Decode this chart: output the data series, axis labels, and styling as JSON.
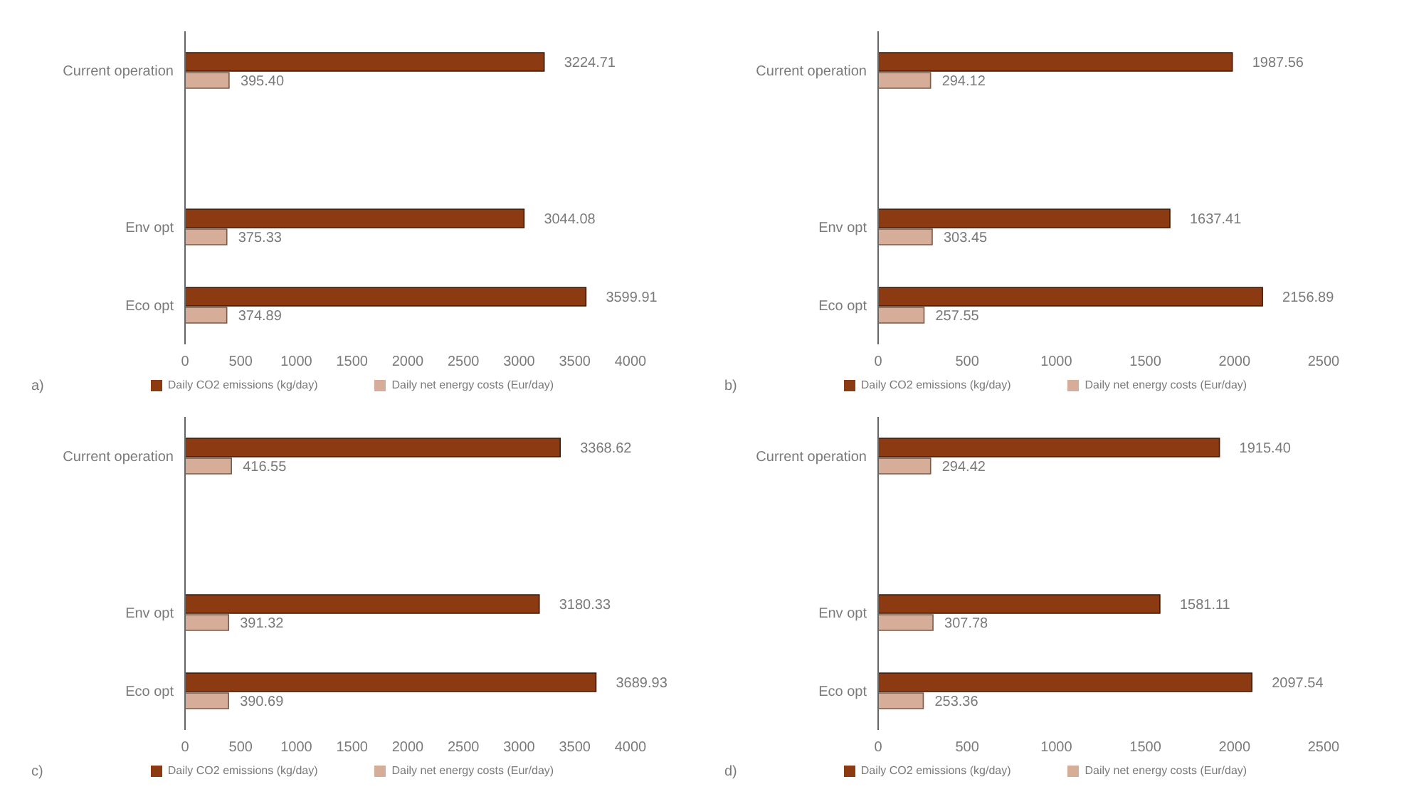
{
  "chart_data": [
    {
      "type": "bar",
      "orientation": "horizontal",
      "categories": [
        "Current operation",
        null,
        "Env opt",
        "Eco opt"
      ],
      "xlim": [
        0,
        4000
      ],
      "xticks": [
        0,
        500,
        1000,
        1500,
        2000,
        2500,
        3000,
        3500,
        4000
      ],
      "grid": false,
      "legend": "bottom",
      "annotations": [
        "a)"
      ],
      "series": [
        {
          "name": "Daily CO2 emissions (kg/day)",
          "color": "#8b3a12",
          "values": [
            3224.71,
            null,
            3044.08,
            3599.91
          ],
          "value_labels": [
            "3224.71",
            null,
            "3044.08",
            "3599.91"
          ]
        },
        {
          "name": "Daily net energy costs (Eur/day)",
          "color": "#d6ad98",
          "values": [
            395.4,
            null,
            375.33,
            374.89
          ],
          "value_labels": [
            "395.40",
            null,
            "375.33",
            "374.89"
          ]
        }
      ]
    },
    {
      "type": "bar",
      "orientation": "horizontal",
      "categories": [
        "Current operation",
        null,
        "Env opt",
        "Eco opt"
      ],
      "xlim": [
        0,
        2500
      ],
      "xticks": [
        0,
        500,
        1000,
        1500,
        2000,
        2500
      ],
      "grid": false,
      "legend": "bottom",
      "annotations": [
        "b)"
      ],
      "series": [
        {
          "name": "Daily CO2 emissions (kg/day)",
          "color": "#8b3a12",
          "values": [
            1987.56,
            null,
            1637.41,
            2156.89
          ],
          "value_labels": [
            "1987.56",
            null,
            "1637.41",
            "2156.89"
          ]
        },
        {
          "name": "Daily net energy costs (Eur/day)",
          "color": "#d6ad98",
          "values": [
            294.12,
            null,
            303.45,
            257.55
          ],
          "value_labels": [
            "294.12",
            null,
            "303.45",
            "257.55"
          ]
        }
      ]
    },
    {
      "type": "bar",
      "orientation": "horizontal",
      "categories": [
        "Current operation",
        null,
        "Env opt",
        "Eco opt"
      ],
      "xlim": [
        0,
        4000
      ],
      "xticks": [
        0,
        500,
        1000,
        1500,
        2000,
        2500,
        3000,
        3500,
        4000
      ],
      "grid": false,
      "legend": "bottom",
      "annotations": [
        "c)"
      ],
      "series": [
        {
          "name": "Daily CO2 emissions (kg/day)",
          "color": "#8b3a12",
          "values": [
            3368.62,
            null,
            3180.33,
            3689.93
          ],
          "value_labels": [
            "3368.62",
            null,
            "3180.33",
            "3689.93"
          ]
        },
        {
          "name": "Daily net energy costs (Eur/day)",
          "color": "#d6ad98",
          "values": [
            416.55,
            null,
            391.32,
            390.69
          ],
          "value_labels": [
            "416.55",
            null,
            "391.32",
            "390.69"
          ]
        }
      ]
    },
    {
      "type": "bar",
      "orientation": "horizontal",
      "categories": [
        "Current operation",
        null,
        "Env opt",
        "Eco opt"
      ],
      "xlim": [
        0,
        2500
      ],
      "xticks": [
        0,
        500,
        1000,
        1500,
        2000,
        2500
      ],
      "grid": false,
      "legend": "bottom",
      "annotations": [
        "d)"
      ],
      "series": [
        {
          "name": "Daily CO2 emissions (kg/day)",
          "color": "#8b3a12",
          "values": [
            1915.4,
            null,
            1581.11,
            2097.54
          ],
          "value_labels": [
            "1915.40",
            null,
            "1581.11",
            "2097.54"
          ]
        },
        {
          "name": "Daily net energy costs (Eur/day)",
          "color": "#d6ad98",
          "values": [
            294.42,
            null,
            307.78,
            253.36
          ],
          "value_labels": [
            "294.42",
            null,
            "307.78",
            "253.36"
          ]
        }
      ]
    }
  ]
}
